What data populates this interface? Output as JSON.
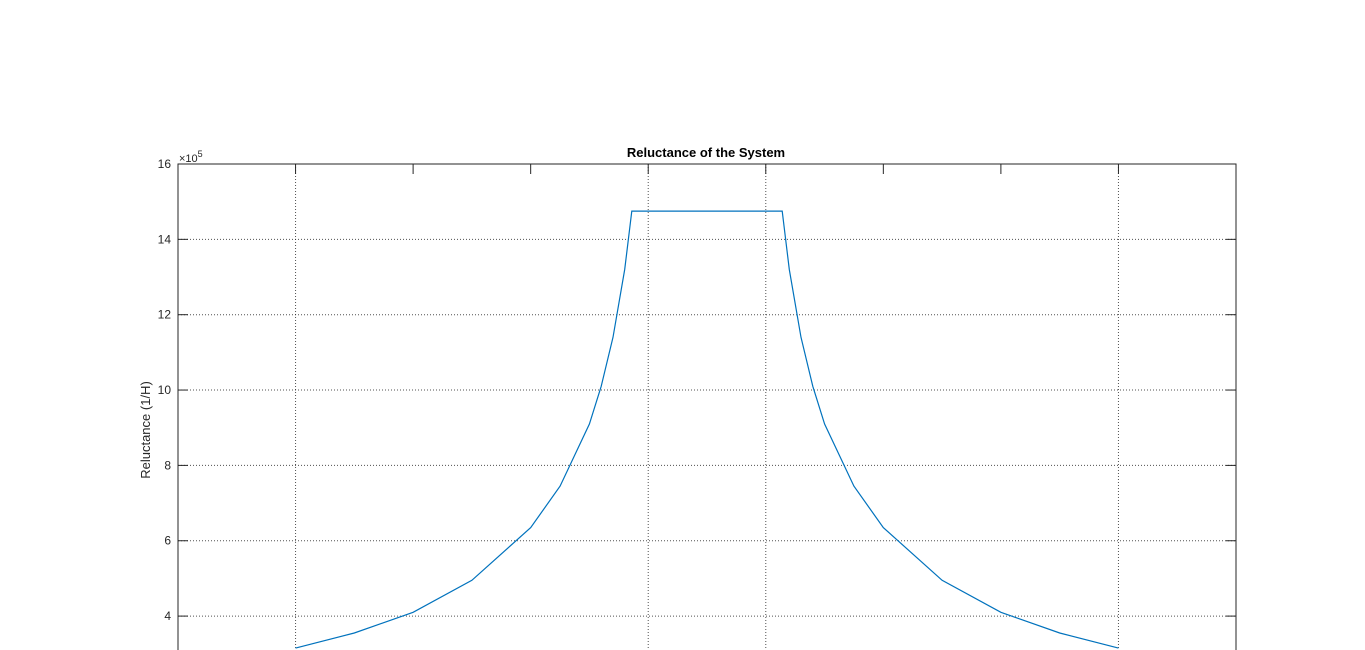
{
  "chart_data": {
    "type": "line",
    "title": "Reluctance of the System",
    "xlabel": "",
    "ylabel": "Reluctance (1/H)",
    "y_exponent_label": "×10",
    "y_exponent_power": "5",
    "ylim": [
      3.1,
      16
    ],
    "xlim": [
      0,
      9
    ],
    "y_ticks": [
      4,
      6,
      8,
      10,
      12,
      14,
      16
    ],
    "y_tick_labels": [
      "4",
      "6",
      "8",
      "10",
      "12",
      "14",
      "16"
    ],
    "x_ticks": [
      1,
      2,
      3,
      4,
      5,
      6,
      7,
      8
    ],
    "x_grid_at": [
      1,
      4,
      5,
      8
    ],
    "y_grid_at": [
      4,
      6,
      8,
      10,
      12,
      14
    ],
    "grid": "dotted",
    "series": [
      {
        "color": "#0072BD",
        "x": [
          1,
          1.5,
          2,
          2.5,
          3,
          3.25,
          3.5,
          3.6,
          3.7,
          3.8,
          3.86,
          5.14,
          5.2,
          5.3,
          5.4,
          5.5,
          5.75,
          6,
          6.5,
          7,
          7.5,
          8
        ],
        "y": [
          3.15,
          3.55,
          4.1,
          4.95,
          6.35,
          7.45,
          9.1,
          10.1,
          11.4,
          13.2,
          14.75,
          14.75,
          13.2,
          11.4,
          10.1,
          9.1,
          7.45,
          6.35,
          4.95,
          4.1,
          3.55,
          3.15
        ]
      }
    ]
  }
}
